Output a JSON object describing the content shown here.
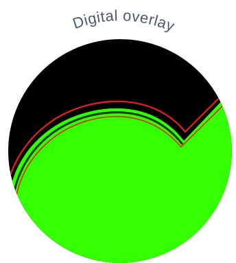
{
  "caption": {
    "text": "Digital overlay"
  },
  "colors": {
    "background": "#ffffff",
    "dark_region": "#000000",
    "green_region": "#33ff00",
    "overlay_outline": "#e82020",
    "caption": "#4a5a6e"
  }
}
